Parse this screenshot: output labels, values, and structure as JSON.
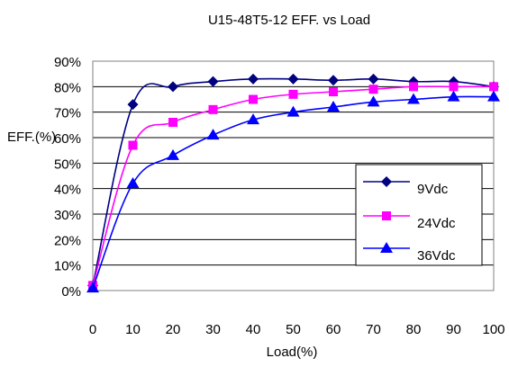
{
  "chart_data": {
    "type": "line",
    "title": "U15-48T5-12 EFF. vs Load",
    "xlabel": "Load(%)",
    "ylabel": "EFF.(%)",
    "x": [
      0,
      10,
      20,
      30,
      40,
      50,
      60,
      70,
      80,
      90,
      100
    ],
    "x_ticks": [
      "0",
      "10",
      "20",
      "30",
      "40",
      "50",
      "60",
      "70",
      "80",
      "90",
      "100"
    ],
    "y_ticks": [
      "0%",
      "10%",
      "20%",
      "30%",
      "40%",
      "50%",
      "60%",
      "70%",
      "80%",
      "90%"
    ],
    "ylim": [
      0,
      90
    ],
    "grid": "horizontal",
    "legend_position": "bottom-right",
    "series": [
      {
        "name": "9Vdc",
        "color": "#000080",
        "marker": "diamond",
        "values": [
          2,
          73,
          80,
          82,
          83,
          83,
          82.5,
          83,
          82,
          82,
          80
        ]
      },
      {
        "name": "24Vdc",
        "color": "#ff00ff",
        "marker": "square",
        "values": [
          2,
          57,
          66,
          71,
          75,
          77,
          78,
          79,
          80,
          80,
          80
        ]
      },
      {
        "name": "36Vdc",
        "color": "#0000ff",
        "marker": "triangle",
        "values": [
          1,
          42,
          53,
          61,
          67,
          70,
          72,
          74,
          75,
          76,
          76
        ]
      }
    ]
  }
}
